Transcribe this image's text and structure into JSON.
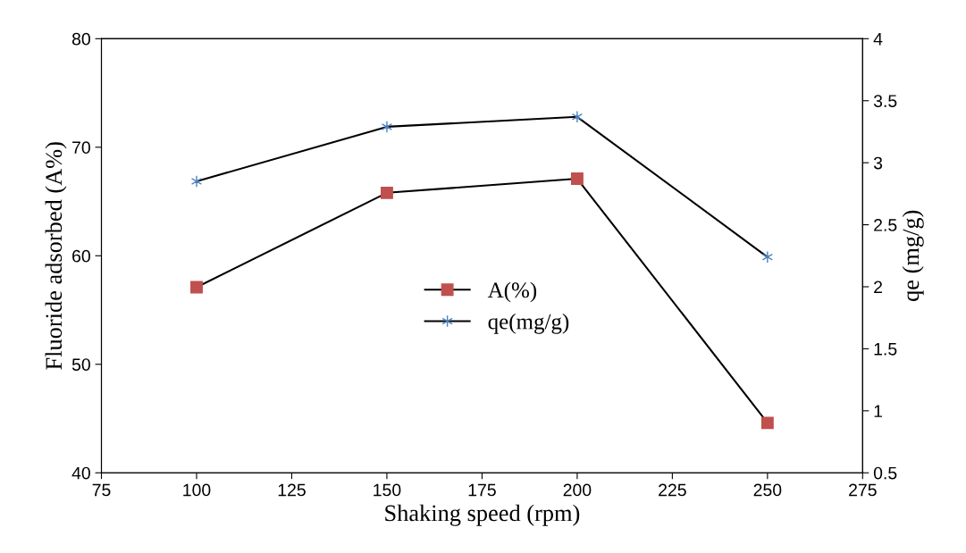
{
  "chart_data": {
    "type": "line",
    "xlabel": "Shaking speed (rpm)",
    "ylabel": "Fluoride adsorbed (A%)",
    "y2label": "qe (mg/g)",
    "x": [
      100,
      150,
      200,
      250
    ],
    "series": [
      {
        "name": "A(%)",
        "color": "#c0504d",
        "marker": "square",
        "values": [
          57.1,
          65.8,
          67.1,
          44.6
        ]
      },
      {
        "name": "qe(mg/g)",
        "color": "#4f81bd",
        "marker": "cross",
        "axis": "y2",
        "values": [
          2.85,
          3.29,
          3.37,
          2.24
        ]
      }
    ],
    "xlim": [
      75,
      275
    ],
    "xticks": [
      75,
      100,
      125,
      150,
      175,
      200,
      225,
      250,
      275
    ],
    "ylim": [
      40,
      80
    ],
    "yticks": [
      40,
      50,
      60,
      70,
      80
    ],
    "y2lim": [
      0.5,
      4
    ],
    "y2ticks": [
      0.5,
      1,
      1.5,
      2,
      2.5,
      3,
      3.5,
      4
    ],
    "legend": "center",
    "grid": false
  }
}
